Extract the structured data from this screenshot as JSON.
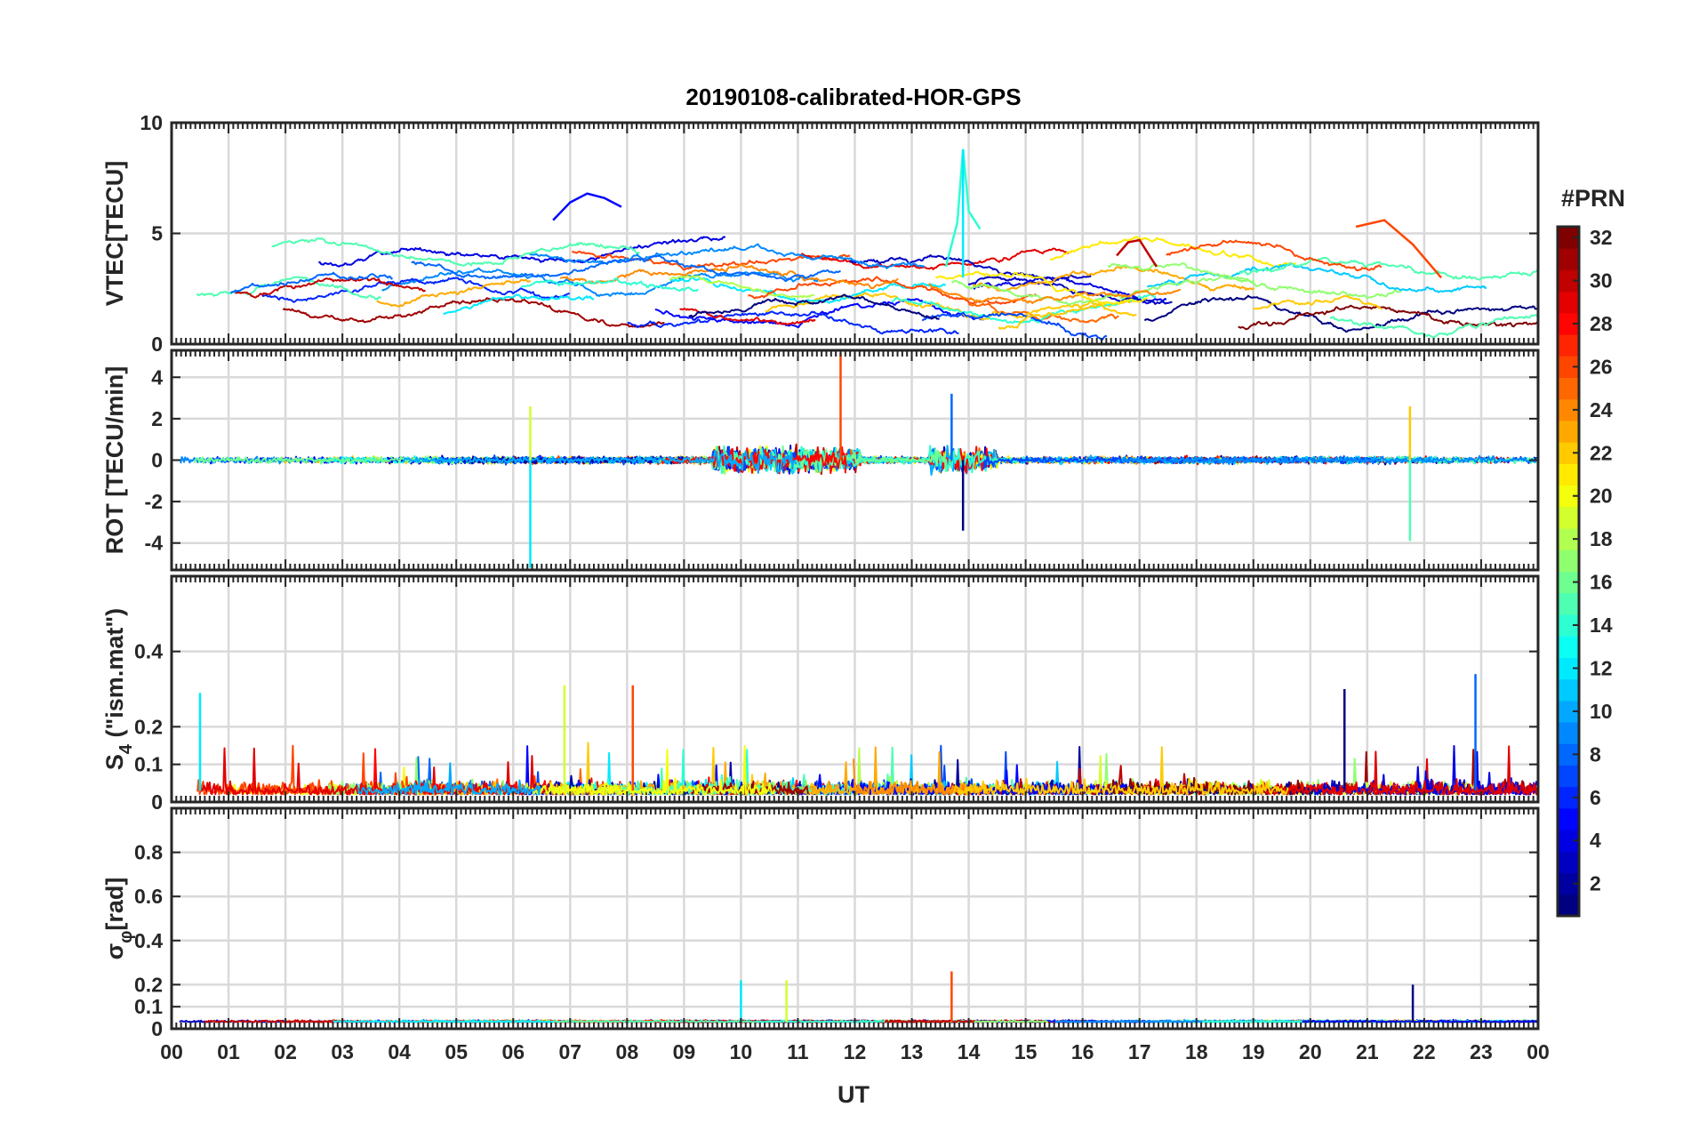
{
  "figure": {
    "title": "20190108-calibrated-HOR-GPS",
    "xlabel": "UT"
  },
  "chart_data": {
    "type": "line",
    "title": "20190108-calibrated-HOR-GPS",
    "xlabel": "UT",
    "x_unit": "hour",
    "xlim": [
      0,
      24
    ],
    "x_ticks": [
      "00",
      "01",
      "02",
      "03",
      "04",
      "05",
      "06",
      "07",
      "08",
      "09",
      "10",
      "11",
      "12",
      "13",
      "14",
      "15",
      "16",
      "17",
      "18",
      "19",
      "20",
      "21",
      "22",
      "23",
      "00"
    ],
    "grid": true,
    "color_encoding": "PRN number (jet colormap)",
    "colorbar": {
      "label": "#PRN",
      "range": [
        1,
        32
      ],
      "ticks": [
        2,
        4,
        6,
        8,
        10,
        12,
        14,
        16,
        18,
        20,
        22,
        24,
        26,
        28,
        30,
        32
      ],
      "placement": "right"
    },
    "panels": [
      {
        "name": "vtec",
        "ylabel": "VTEC[TECU]",
        "ylim": [
          0,
          10
        ],
        "yticks": [
          0,
          5,
          10
        ],
        "typical_range": [
          1,
          5
        ],
        "peak": {
          "x": 13.9,
          "y": 8.8
        },
        "series_summary": [
          {
            "prn": 5,
            "x": [
              6.7,
              7.0,
              7.3,
              7.6,
              7.9
            ],
            "y": [
              5.6,
              6.4,
              6.8,
              6.6,
              6.2
            ]
          },
          {
            "prn": 14,
            "x": [
              13.6,
              13.8,
              13.9,
              14.0,
              14.2
            ],
            "y": [
              3.5,
              5.5,
              8.8,
              6.0,
              5.2
            ]
          },
          {
            "prn": 26,
            "x": [
              20.8,
              21.3,
              21.8,
              22.3
            ],
            "y": [
              5.3,
              5.6,
              4.5,
              3.0
            ]
          },
          {
            "prn": 30,
            "x": [
              16.6,
              16.8,
              17.0,
              17.3
            ],
            "y": [
              4.0,
              4.6,
              4.7,
              3.5
            ]
          }
        ]
      },
      {
        "name": "rot",
        "ylabel": "ROT [TECU/min]",
        "ylim": [
          -5.3,
          5.3
        ],
        "yticks": [
          -4,
          -2,
          0,
          2,
          4
        ],
        "baseline": 0,
        "spikes": [
          {
            "x": 6.3,
            "y": -5.2
          },
          {
            "x": 6.3,
            "y": 2.6
          },
          {
            "x": 11.75,
            "y": 5.2
          },
          {
            "x": 13.9,
            "y": -3.4
          },
          {
            "x": 13.7,
            "y": 3.2
          },
          {
            "x": 21.75,
            "y": -3.9
          },
          {
            "x": 21.75,
            "y": 2.6
          }
        ]
      },
      {
        "name": "s4",
        "ylabel_main": "S",
        "ylabel_sub": "4",
        "ylabel_tail": " (\"ism.mat\")",
        "ylim": [
          0,
          0.6
        ],
        "yticks": [
          0,
          0.1,
          0.2,
          0.4
        ],
        "typical_range": [
          0,
          0.1
        ],
        "peaks": [
          {
            "x": 0.5,
            "y": 0.29
          },
          {
            "x": 6.9,
            "y": 0.31
          },
          {
            "x": 8.1,
            "y": 0.31
          },
          {
            "x": 20.6,
            "y": 0.3
          },
          {
            "x": 22.9,
            "y": 0.34
          }
        ]
      },
      {
        "name": "sigma_phi",
        "ylabel_main": "σ",
        "ylabel_sub": "φ",
        "ylabel_tail": "[rad]",
        "ylim": [
          0,
          1
        ],
        "yticks": [
          0,
          0.1,
          0.2,
          0.4,
          0.6,
          0.8
        ],
        "baseline": 0.03,
        "peaks": [
          {
            "x": 10.0,
            "y": 0.22
          },
          {
            "x": 10.8,
            "y": 0.22
          },
          {
            "x": 13.7,
            "y": 0.26
          },
          {
            "x": 21.8,
            "y": 0.2
          }
        ]
      }
    ]
  },
  "colors": {
    "axes": "#262626",
    "grid": "#d9d9d9",
    "background": "#ffffff"
  }
}
